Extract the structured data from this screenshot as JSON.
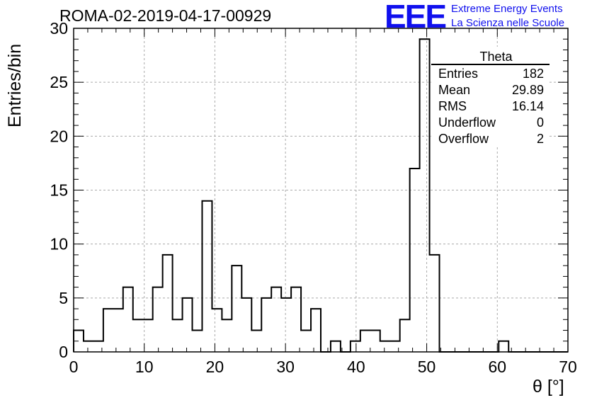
{
  "title": "ROMA-02-2019-04-17-00929",
  "logo": {
    "mark": "EEE",
    "line1": "Extreme Energy Events",
    "line2": "La Scienza nelle Scuole",
    "color": "#1010ee"
  },
  "stats": {
    "name": "Theta",
    "rows": [
      {
        "label": "Entries",
        "value": "182"
      },
      {
        "label": "Mean",
        "value": "29.89"
      },
      {
        "label": "RMS",
        "value": "16.14"
      },
      {
        "label": "Underflow",
        "value": "0"
      },
      {
        "label": "Overflow",
        "value": "2"
      }
    ]
  },
  "chart_data": {
    "type": "histogram",
    "xlabel": "θ [°]",
    "ylabel": "Entries/bin",
    "xlim": [
      0,
      70
    ],
    "ylim": [
      0,
      30
    ],
    "xticks": [
      0,
      10,
      20,
      30,
      40,
      50,
      60,
      70
    ],
    "yticks": [
      0,
      5,
      10,
      15,
      20,
      25,
      30
    ],
    "grid": true,
    "bin_width": 1.4,
    "bin_start": 0,
    "counts": [
      2,
      1,
      1,
      4,
      4,
      6,
      3,
      3,
      6,
      9,
      3,
      5,
      2,
      14,
      4,
      3,
      8,
      5,
      2,
      5,
      6,
      5,
      6,
      2,
      4,
      0,
      1,
      0,
      1,
      2,
      2,
      1,
      1,
      3,
      17,
      29,
      9,
      0,
      0,
      0,
      0,
      0,
      0,
      1,
      0,
      0,
      0,
      0,
      0,
      0
    ]
  }
}
